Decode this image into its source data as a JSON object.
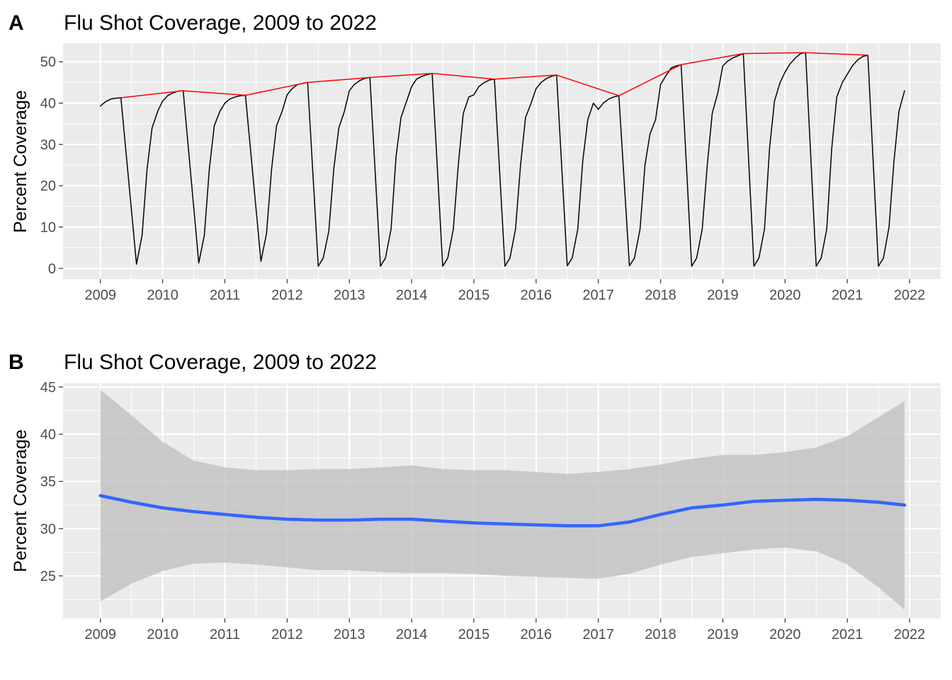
{
  "panels": [
    {
      "tag": "A",
      "title": "Flu Shot Coverage, 2009 to 2022",
      "ylabel": "Percent Coverage"
    },
    {
      "tag": "B",
      "title": "Flu Shot Coverage, 2009 to 2022",
      "ylabel": "Percent Coverage"
    }
  ],
  "chart_data": [
    {
      "type": "line",
      "title": "Flu Shot Coverage, 2009 to 2022",
      "xlabel": "",
      "ylabel": "Percent Coverage",
      "xlim": [
        2008.4,
        2022.5
      ],
      "ylim": [
        -2.6,
        54.5
      ],
      "x_ticks": [
        2009,
        2010,
        2011,
        2012,
        2013,
        2014,
        2015,
        2016,
        2017,
        2018,
        2019,
        2020,
        2021,
        2022
      ],
      "x_tick_labels": [
        "2009",
        "2010",
        "2011",
        "2012",
        "2013",
        "2014",
        "2015",
        "2016",
        "2017",
        "2018",
        "2019",
        "2020",
        "2021",
        "2022"
      ],
      "y_ticks": [
        0,
        10,
        20,
        30,
        40,
        50
      ],
      "y_tick_labels": [
        "0",
        "10",
        "20",
        "30",
        "40",
        "50"
      ],
      "grid": true,
      "background": "#ebebeb",
      "series": [
        {
          "color": "#000000",
          "x": [
            2009.0,
            2009.08,
            2009.17,
            2009.25,
            2009.33,
            2009.58,
            2009.67,
            2009.75,
            2009.83,
            2009.92,
            2010.0,
            2010.08,
            2010.17,
            2010.25,
            2010.33,
            2010.58,
            2010.67,
            2010.75,
            2010.83,
            2010.92,
            2011.0,
            2011.08,
            2011.17,
            2011.25,
            2011.33,
            2011.58,
            2011.67,
            2011.75,
            2011.83,
            2011.92,
            2012.0,
            2012.08,
            2012.17,
            2012.25,
            2012.33,
            2012.5,
            2012.58,
            2012.67,
            2012.75,
            2012.83,
            2012.92,
            2013.0,
            2013.08,
            2013.17,
            2013.25,
            2013.33,
            2013.5,
            2013.58,
            2013.67,
            2013.75,
            2013.83,
            2013.92,
            2014.0,
            2014.08,
            2014.17,
            2014.25,
            2014.33,
            2014.5,
            2014.58,
            2014.67,
            2014.75,
            2014.83,
            2014.92,
            2015.0,
            2015.08,
            2015.17,
            2015.25,
            2015.33,
            2015.5,
            2015.58,
            2015.67,
            2015.75,
            2015.83,
            2015.92,
            2016.0,
            2016.08,
            2016.17,
            2016.25,
            2016.33,
            2016.5,
            2016.58,
            2016.67,
            2016.75,
            2016.83,
            2016.92,
            2017.0,
            2017.08,
            2017.17,
            2017.25,
            2017.33,
            2017.5,
            2017.58,
            2017.67,
            2017.75,
            2017.83,
            2017.92,
            2018.0,
            2018.08,
            2018.17,
            2018.25,
            2018.33,
            2018.5,
            2018.58,
            2018.67,
            2018.75,
            2018.83,
            2018.92,
            2019.0,
            2019.08,
            2019.17,
            2019.25,
            2019.33,
            2019.5,
            2019.58,
            2019.67,
            2019.75,
            2019.83,
            2019.92,
            2020.0,
            2020.08,
            2020.17,
            2020.25,
            2020.33,
            2020.5,
            2020.58,
            2020.67,
            2020.75,
            2020.83,
            2020.92,
            2021.0,
            2021.08,
            2021.17,
            2021.25,
            2021.33,
            2021.5,
            2021.58,
            2021.67,
            2021.75,
            2021.83,
            2021.92
          ],
          "y": [
            39.3,
            40.3,
            41.0,
            41.2,
            41.3,
            1.0,
            8.0,
            24.0,
            34.0,
            38.0,
            40.5,
            41.8,
            42.5,
            42.9,
            43.0,
            1.3,
            8.0,
            24.0,
            34.5,
            38.0,
            40.0,
            41.0,
            41.5,
            41.8,
            41.9,
            1.7,
            8.5,
            24.0,
            34.5,
            38.0,
            42.0,
            43.5,
            44.5,
            44.8,
            45.0,
            0.5,
            2.5,
            9.0,
            24.0,
            34.0,
            38.0,
            43.0,
            44.5,
            45.5,
            46.0,
            46.2,
            0.5,
            2.5,
            9.5,
            27.0,
            36.5,
            40.5,
            44.0,
            45.8,
            46.5,
            46.9,
            47.2,
            0.5,
            2.5,
            9.5,
            25.0,
            37.5,
            41.5,
            42.0,
            44.0,
            45.0,
            45.6,
            45.8,
            0.5,
            2.5,
            9.5,
            25.0,
            36.5,
            40.0,
            43.5,
            45.0,
            46.0,
            46.5,
            46.8,
            0.6,
            2.5,
            9.5,
            26.0,
            36.0,
            40.0,
            38.5,
            40.0,
            41.0,
            41.5,
            41.8,
            0.6,
            2.5,
            9.5,
            25.0,
            32.5,
            36.0,
            44.5,
            46.5,
            48.5,
            49.0,
            49.3,
            0.5,
            2.5,
            9.5,
            25.0,
            37.5,
            42.5,
            49.0,
            50.2,
            51.0,
            51.5,
            52.0,
            0.5,
            2.5,
            9.5,
            29.0,
            40.5,
            45.0,
            47.5,
            49.5,
            51.0,
            52.0,
            52.2,
            0.5,
            2.5,
            9.5,
            29.0,
            41.5,
            45.0,
            47.0,
            49.0,
            50.5,
            51.3,
            51.6,
            0.5,
            2.5,
            10.0,
            26.0,
            38.0,
            43.0
          ]
        },
        {
          "color": "#ff0000",
          "x": [
            2009.33,
            2010.33,
            2011.33,
            2012.33,
            2013.33,
            2014.33,
            2015.33,
            2016.33,
            2017.33,
            2018.33,
            2019.33,
            2020.33,
            2021.33
          ],
          "y": [
            41.3,
            43.0,
            41.9,
            45.0,
            46.2,
            47.2,
            45.8,
            46.8,
            41.8,
            49.3,
            52.0,
            52.2,
            51.6
          ]
        }
      ]
    },
    {
      "type": "area",
      "title": "Flu Shot Coverage, 2009 to 2022",
      "xlabel": "",
      "ylabel": "Percent Coverage",
      "xlim": [
        2008.4,
        2022.5
      ],
      "ylim": [
        20.5,
        45.4
      ],
      "x_ticks": [
        2009,
        2010,
        2011,
        2012,
        2013,
        2014,
        2015,
        2016,
        2017,
        2018,
        2019,
        2020,
        2021,
        2022
      ],
      "x_tick_labels": [
        "2009",
        "2010",
        "2011",
        "2012",
        "2013",
        "2014",
        "2015",
        "2016",
        "2017",
        "2018",
        "2019",
        "2020",
        "2021",
        "2022"
      ],
      "y_ticks": [
        25,
        30,
        35,
        40,
        45
      ],
      "y_tick_labels": [
        "25",
        "30",
        "35",
        "40",
        "45"
      ],
      "grid": true,
      "background": "#ebebeb",
      "series": [
        {
          "color": "#3366ff",
          "band_color": "#bdbdbd",
          "x": [
            2009.0,
            2009.5,
            2010.0,
            2010.5,
            2011.0,
            2011.5,
            2012.0,
            2012.5,
            2013.0,
            2013.5,
            2014.0,
            2014.5,
            2015.0,
            2015.5,
            2016.0,
            2016.5,
            2017.0,
            2017.5,
            2018.0,
            2018.5,
            2019.0,
            2019.5,
            2020.0,
            2020.5,
            2021.0,
            2021.5,
            2021.92
          ],
          "y": [
            33.5,
            32.8,
            32.2,
            31.8,
            31.5,
            31.2,
            31.0,
            30.9,
            30.9,
            31.0,
            31.0,
            30.8,
            30.6,
            30.5,
            30.4,
            30.3,
            30.3,
            30.7,
            31.5,
            32.2,
            32.5,
            32.9,
            33.0,
            33.1,
            33.0,
            32.8,
            32.5
          ],
          "upper": [
            44.7,
            42.0,
            39.2,
            37.2,
            36.5,
            36.2,
            36.2,
            36.3,
            36.3,
            36.5,
            36.7,
            36.3,
            36.2,
            36.2,
            36.0,
            35.8,
            36.0,
            36.3,
            36.8,
            37.4,
            37.8,
            37.8,
            38.1,
            38.6,
            39.8,
            41.8,
            43.5
          ],
          "lower": [
            22.3,
            24.2,
            25.5,
            26.3,
            26.4,
            26.2,
            25.9,
            25.6,
            25.6,
            25.4,
            25.3,
            25.3,
            25.2,
            25.0,
            24.9,
            24.8,
            24.7,
            25.2,
            26.2,
            27.0,
            27.4,
            27.8,
            28.0,
            27.6,
            26.2,
            23.8,
            21.4
          ]
        }
      ]
    }
  ]
}
